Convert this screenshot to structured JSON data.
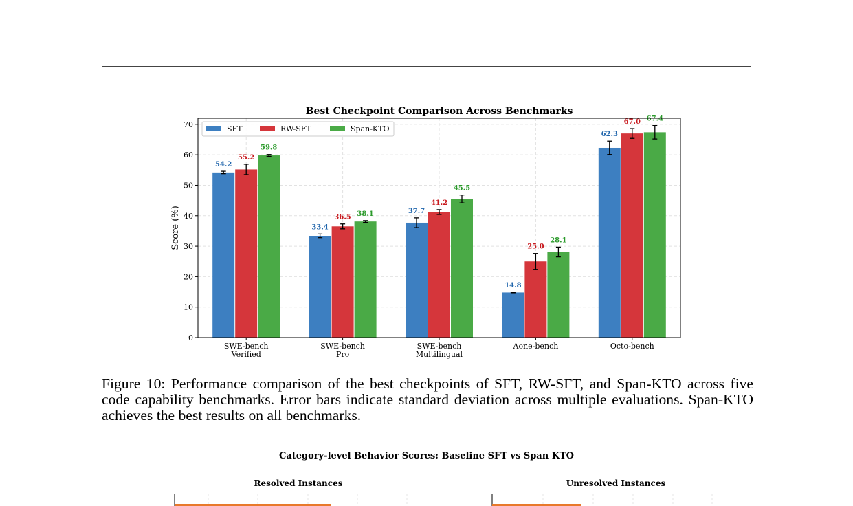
{
  "chart_data": {
    "type": "bar",
    "title": "Best Checkpoint Comparison Across Benchmarks",
    "xlabel": "",
    "ylabel": "Score (%)",
    "ylim": [
      0,
      72
    ],
    "yticks": [
      0,
      10,
      20,
      30,
      40,
      50,
      60,
      70
    ],
    "grid": true,
    "legend_position": "top-left",
    "categories": [
      [
        "SWE-bench",
        "Verified"
      ],
      [
        "SWE-bench",
        "Pro"
      ],
      [
        "SWE-bench",
        "Multilingual"
      ],
      [
        "Aone-bench"
      ],
      [
        "Octo-bench"
      ]
    ],
    "series": [
      {
        "name": "SFT",
        "color": "#3d7fc1",
        "label_color": "#2166ac",
        "values": [
          54.2,
          33.4,
          37.7,
          14.8,
          62.3
        ],
        "errors": [
          0.4,
          0.6,
          1.6,
          0.1,
          2.2
        ]
      },
      {
        "name": "RW-SFT",
        "color": "#d5363b",
        "label_color": "#c8191e",
        "values": [
          55.2,
          36.5,
          41.2,
          25.0,
          67.0
        ],
        "errors": [
          1.7,
          0.8,
          0.8,
          2.6,
          1.6
        ]
      },
      {
        "name": "Span-KTO",
        "color": "#4aaa46",
        "label_color": "#2b9a2b",
        "values": [
          59.8,
          38.1,
          45.5,
          28.1,
          67.4
        ],
        "errors": [
          0.3,
          0.3,
          1.3,
          1.6,
          2.2
        ]
      }
    ]
  },
  "caption": "Figure 10: Performance comparison of the best checkpoints of SFT, RW-SFT, and Span-KTO across five code capability benchmarks. Error bars indicate standard deviation across multiple evaluations. Span-KTO achieves the best results on all benchmarks.",
  "figure2": {
    "title": "Category-level Behavior Scores: Baseline SFT vs Span KTO",
    "left_title": "Resolved Instances",
    "right_title": "Unresolved Instances",
    "bar_color": "#e8792b"
  }
}
